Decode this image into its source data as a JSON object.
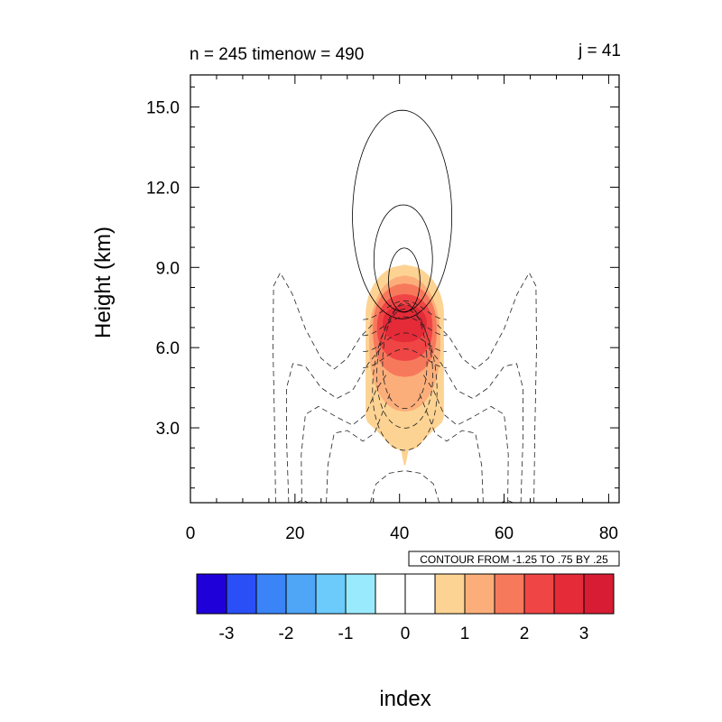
{
  "chart_data": {
    "type": "contour",
    "title_left": "n = 245 timenow = 490",
    "title_right": "j = 41",
    "ylabel": "Height (km)",
    "xlabel": "index",
    "xlim": [
      0,
      82
    ],
    "ylim": [
      0.2,
      16.2
    ],
    "x_ticks": [
      {
        "value": 0,
        "label": "0"
      },
      {
        "value": 20,
        "label": "20"
      },
      {
        "value": 40,
        "label": "40"
      },
      {
        "value": 60,
        "label": "60"
      },
      {
        "value": 80,
        "label": "80"
      }
    ],
    "y_ticks": [
      {
        "value": 3,
        "label": "3.0"
      },
      {
        "value": 6,
        "label": "6.0"
      },
      {
        "value": 9,
        "label": "9.0"
      },
      {
        "value": 12,
        "label": "12.0"
      },
      {
        "value": 15,
        "label": "15.0"
      }
    ],
    "contour_info": "CONTOUR FROM -1.25 TO .75 BY .25",
    "filled_field": {
      "center_x": 41,
      "levels": [
        {
          "min_value": 0.5,
          "color": "#fdd393",
          "x_half_width": 7.5,
          "y_bottom": 1.6,
          "y_top": 9.1
        },
        {
          "min_value": 1.0,
          "color": "#fcae7a",
          "x_half_width": 6.8,
          "y_bottom": 3.6,
          "y_top": 8.7
        },
        {
          "min_value": 1.5,
          "color": "#f7795c",
          "x_half_width": 6.1,
          "y_bottom": 4.9,
          "y_top": 8.4
        },
        {
          "min_value": 2.0,
          "color": "#f04545",
          "x_half_width": 5.3,
          "y_bottom": 5.5,
          "y_top": 8.0
        },
        {
          "min_value": 2.5,
          "color": "#e52a38",
          "x_half_width": 4.2,
          "y_bottom": 6.2,
          "y_top": 7.6
        }
      ]
    },
    "line_contours": {
      "positive_levels": [
        {
          "value": 0.25,
          "center_x": 40.5,
          "center_y": 10.9,
          "half_width": 9.5,
          "half_height": 3.9
        },
        {
          "value": 0.5,
          "center_x": 40.7,
          "center_y": 9.3,
          "half_width": 5.6,
          "half_height": 2.0
        },
        {
          "value": 0.75,
          "center_x": 40.9,
          "center_y": 8.5,
          "half_width": 3.0,
          "half_height": 1.2
        }
      ],
      "negative_levels": [
        -1.25,
        -1.0,
        -0.75,
        -0.5,
        -0.25
      ]
    },
    "colorbar": {
      "colors": [
        "#2000d8",
        "#2a4ff6",
        "#3a84f8",
        "#4fa5f6",
        "#6ccbfb",
        "#9aeafd",
        "#ffffff",
        "#ffffff",
        "#fdd393",
        "#fcae7a",
        "#f7795c",
        "#f04545",
        "#e52a38",
        "#d71c33"
      ],
      "labels": [
        "-3",
        "-2",
        "-1",
        "0",
        "1",
        "2",
        "3"
      ]
    }
  }
}
